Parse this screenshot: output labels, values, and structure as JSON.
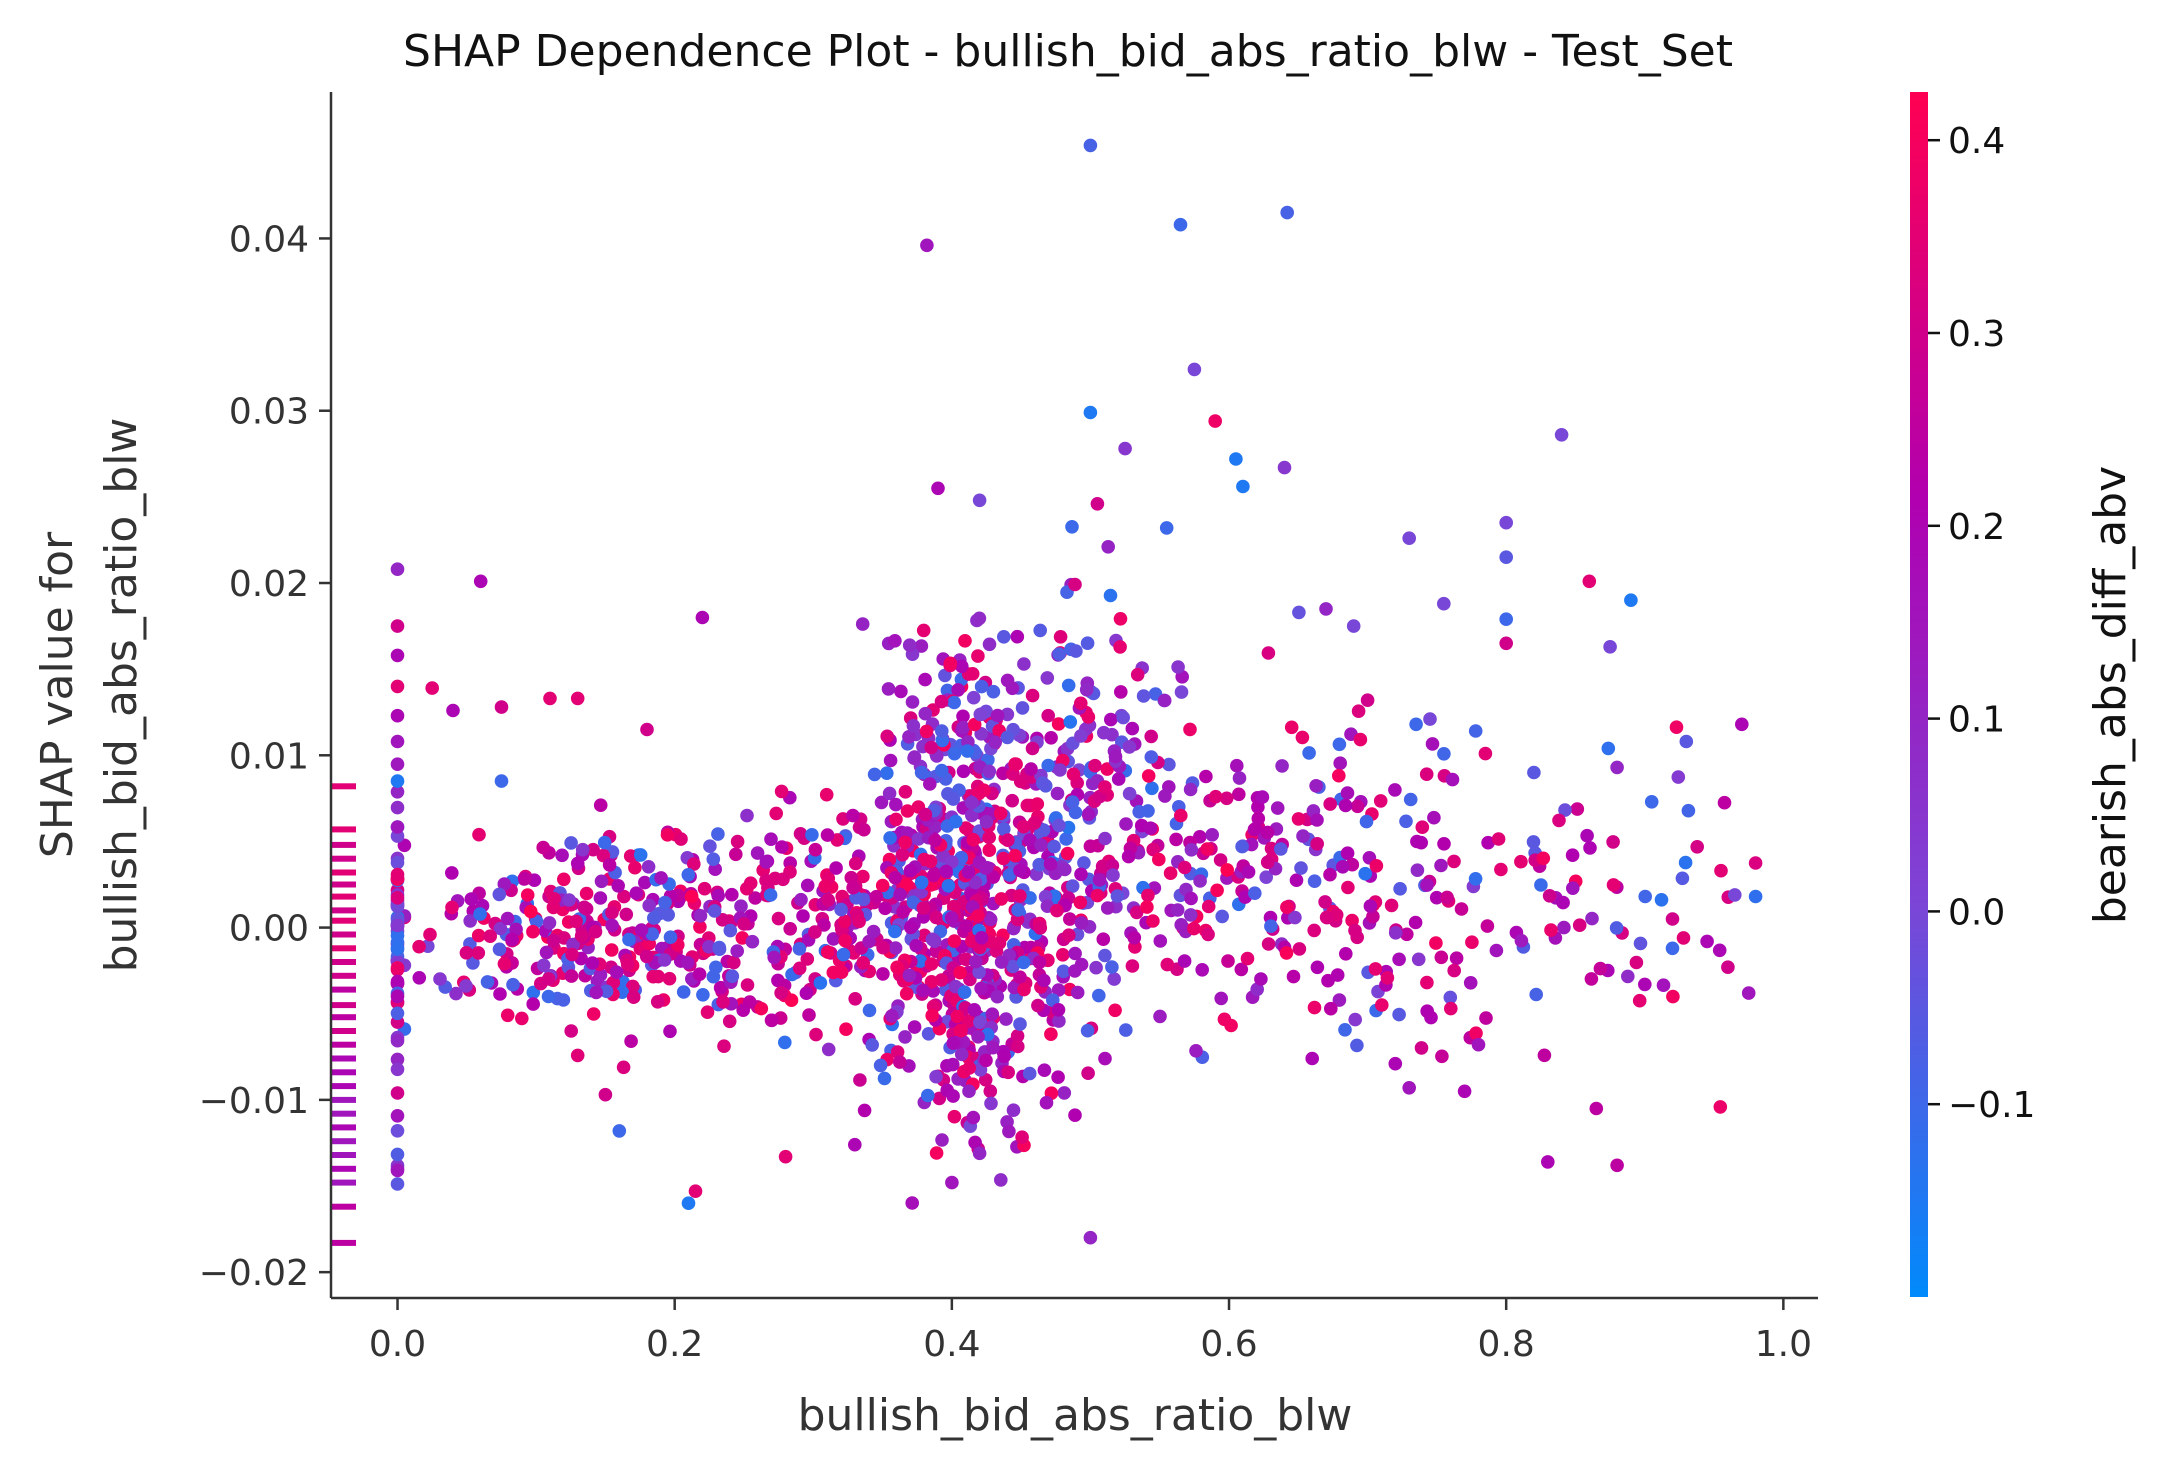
{
  "chart_data": {
    "type": "scatter",
    "title": "SHAP Dependence Plot - bullish_bid_abs_ratio_blw - Test_Set",
    "xlabel": "bullish_bid_abs_ratio_blw",
    "ylabel_line1": "SHAP value for",
    "ylabel_line2": "bullish_bid_abs_ratio_blw",
    "colorbar_label": "bearish_abs_diff_abv",
    "xlim": [
      -0.048,
      1.025
    ],
    "ylim": [
      -0.0215,
      0.0485
    ],
    "xticks": [
      0.0,
      0.2,
      0.4,
      0.6,
      0.8,
      1.0
    ],
    "xtick_labels": [
      "0.0",
      "0.2",
      "0.4",
      "0.6",
      "0.8",
      "1.0"
    ],
    "yticks": [
      -0.02,
      -0.01,
      0.0,
      0.01,
      0.02,
      0.03,
      0.04
    ],
    "ytick_labels": [
      "−0.02",
      "−0.01",
      "0.00",
      "0.01",
      "0.02",
      "0.03",
      "0.04"
    ],
    "color_range": [
      -0.2,
      0.425
    ],
    "cticks": [
      -0.1,
      0.0,
      0.1,
      0.2,
      0.3,
      0.4
    ],
    "ctick_labels": [
      "−0.1",
      "0.0",
      "0.1",
      "0.2",
      "0.3",
      "0.4"
    ],
    "colormap": [
      "#008afb",
      "#7d44d6",
      "#b000b0",
      "#ff0052"
    ],
    "grid": false,
    "points_xyc": [
      [
        0.5,
        0.0454,
        -0.08
      ],
      [
        0.642,
        0.0415,
        -0.08
      ],
      [
        0.565,
        0.0408,
        -0.1
      ],
      [
        0.382,
        0.0396,
        0.15
      ],
      [
        0.575,
        0.0324,
        0.0
      ],
      [
        0.5,
        0.0299,
        -0.15
      ],
      [
        0.84,
        0.0286,
        0.0
      ],
      [
        0.59,
        0.0294,
        0.38
      ],
      [
        0.605,
        0.0272,
        -0.15
      ],
      [
        0.61,
        0.0256,
        -0.15
      ],
      [
        0.64,
        0.0267,
        0.05
      ],
      [
        0.525,
        0.0278,
        0.05
      ],
      [
        0.39,
        0.0255,
        0.2
      ],
      [
        0.42,
        0.0248,
        0.0
      ],
      [
        0.505,
        0.0246,
        0.3
      ],
      [
        0.8,
        0.0235,
        0.0
      ],
      [
        0.73,
        0.0226,
        0.0
      ],
      [
        0.555,
        0.0232,
        -0.1
      ],
      [
        0.8,
        0.0215,
        -0.05
      ],
      [
        0.0,
        0.0208,
        0.1
      ],
      [
        0.06,
        0.0201,
        0.2
      ],
      [
        0.86,
        0.0201,
        0.35
      ],
      [
        0.89,
        0.019,
        -0.15
      ],
      [
        0.22,
        0.018,
        0.2
      ],
      [
        0.8,
        0.0179,
        -0.1
      ],
      [
        0.0,
        0.0175,
        0.3
      ],
      [
        0.8,
        0.0165,
        0.3
      ],
      [
        0.875,
        0.0163,
        0.0
      ],
      [
        0.0,
        0.0158,
        0.2
      ],
      [
        0.0,
        0.014,
        0.35
      ],
      [
        0.025,
        0.0139,
        0.35
      ],
      [
        0.0,
        0.0123,
        0.2
      ],
      [
        0.04,
        0.0126,
        0.2
      ],
      [
        0.075,
        0.0128,
        0.3
      ],
      [
        0.11,
        0.0133,
        0.35
      ],
      [
        0.13,
        0.0133,
        0.35
      ],
      [
        0.0,
        0.0108,
        0.15
      ],
      [
        0.18,
        0.0115,
        0.3
      ],
      [
        0.0,
        0.0085,
        -0.15
      ],
      [
        0.075,
        0.0085,
        -0.1
      ],
      [
        0.0,
        -0.0096,
        0.3
      ],
      [
        0.0,
        -0.0141,
        0.15
      ],
      [
        0.21,
        -0.016,
        -0.15
      ],
      [
        0.215,
        -0.0153,
        0.35
      ],
      [
        0.5,
        -0.018,
        0.1
      ],
      [
        0.88,
        -0.0138,
        0.25
      ],
      [
        0.83,
        -0.0136,
        0.2
      ],
      [
        0.865,
        -0.0105,
        0.25
      ],
      [
        0.97,
        0.0118,
        0.2
      ],
      [
        0.975,
        -0.0038,
        0.15
      ],
      [
        0.955,
        0.0033,
        0.35
      ],
      [
        0.965,
        0.0019,
        0.0
      ],
      [
        0.92,
        -0.0012,
        -0.1
      ],
      [
        0.92,
        0.0005,
        0.3
      ],
      [
        0.945,
        -0.0008,
        0.2
      ],
      [
        0.96,
        -0.0023,
        0.3
      ],
      [
        0.9,
        -0.0033,
        0.2
      ],
      [
        0.93,
        0.0108,
        -0.05
      ],
      [
        0.905,
        0.0073,
        -0.1
      ],
      [
        0.88,
        0.0093,
        0.1
      ],
      [
        0.82,
        0.009,
        -0.05
      ],
      [
        0.78,
        -0.0068,
        0.15
      ],
      [
        0.77,
        -0.0095,
        0.2
      ],
      [
        0.73,
        -0.0093,
        0.15
      ],
      [
        0.72,
        -0.0079,
        0.2
      ],
      [
        0.76,
        -0.0047,
        0.35
      ],
      [
        0.745,
        0.0121,
        0.0
      ],
      [
        0.735,
        0.0118,
        -0.1
      ],
      [
        0.785,
        0.0101,
        0.35
      ],
      [
        0.755,
        0.0188,
        0.0
      ],
      [
        0.69,
        0.0175,
        0.0
      ],
      [
        0.67,
        0.0185,
        0.1
      ],
      [
        0.66,
        -0.0076,
        0.2
      ],
      [
        0.7,
        0.0132,
        0.3
      ],
      [
        0.28,
        -0.0133,
        0.35
      ],
      [
        0.33,
        -0.0126,
        0.2
      ],
      [
        0.42,
        -0.0131,
        0.1
      ],
      [
        0.4,
        -0.0148,
        0.15
      ],
      [
        0.16,
        -0.0118,
        -0.1
      ],
      [
        0.15,
        -0.0097,
        0.3
      ]
    ],
    "clusters": [
      {
        "n": 320,
        "cx": 0.42,
        "sx": 0.035,
        "cy": 0.0003,
        "sy": 0.0045,
        "ctr": 0.2
      },
      {
        "n": 180,
        "cx": 0.49,
        "sx": 0.04,
        "cy": 0.0055,
        "sy": 0.0055,
        "ctr": 0.1
      },
      {
        "n": 160,
        "cx": 0.4,
        "sx": 0.025,
        "cy": 0.0095,
        "sy": 0.0045,
        "ctr": 0.1
      },
      {
        "n": 220,
        "cx": 0.33,
        "sx": 0.05,
        "cy": 0.0005,
        "sy": 0.0035,
        "ctr": 0.25
      },
      {
        "n": 200,
        "cx": 0.2,
        "sx": 0.06,
        "cy": 0.0,
        "sy": 0.0028,
        "ctr": 0.22
      },
      {
        "n": 140,
        "cx": 0.1,
        "sx": 0.05,
        "cy": -0.0008,
        "sy": 0.0028,
        "ctr": 0.2
      },
      {
        "n": 160,
        "cx": 0.6,
        "sx": 0.06,
        "cy": 0.0025,
        "sy": 0.0045,
        "ctr": 0.18
      },
      {
        "n": 110,
        "cx": 0.72,
        "sx": 0.06,
        "cy": 0.002,
        "sy": 0.0045,
        "ctr": 0.22
      },
      {
        "n": 60,
        "cx": 0.86,
        "sx": 0.06,
        "cy": 0.001,
        "sy": 0.0045,
        "ctr": 0.22
      },
      {
        "n": 90,
        "cx": 0.41,
        "sx": 0.03,
        "cy": -0.007,
        "sy": 0.003,
        "ctr": 0.15
      },
      {
        "n": 50,
        "cx": 0.48,
        "sx": 0.04,
        "cy": 0.013,
        "sy": 0.004,
        "ctr": 0.05
      },
      {
        "n": 60,
        "cx": 0.0,
        "sx": 0.0,
        "cy": -0.0012,
        "sy": 0.0045,
        "ctr": 0.1
      }
    ],
    "rug": [
      [
        0.0082,
        0.35
      ],
      [
        0.0057,
        0.35
      ],
      [
        0.0048,
        0.3
      ],
      [
        0.004,
        0.3
      ],
      [
        0.0032,
        0.35
      ],
      [
        0.0025,
        0.3
      ],
      [
        0.0018,
        0.35
      ],
      [
        0.001,
        0.3
      ],
      [
        0.0004,
        0.35
      ],
      [
        -0.0004,
        0.3
      ],
      [
        -0.0012,
        0.35
      ],
      [
        -0.002,
        0.3
      ],
      [
        -0.0028,
        0.3
      ],
      [
        -0.0036,
        0.25
      ],
      [
        -0.0045,
        0.3
      ],
      [
        -0.0052,
        0.25
      ],
      [
        -0.006,
        0.3
      ],
      [
        -0.0068,
        0.25
      ],
      [
        -0.0076,
        0.2
      ],
      [
        -0.0084,
        0.2
      ],
      [
        -0.0092,
        0.2
      ],
      [
        -0.01,
        0.15
      ],
      [
        -0.0108,
        0.15
      ],
      [
        -0.0116,
        0.2
      ],
      [
        -0.0124,
        0.15
      ],
      [
        -0.0132,
        0.15
      ],
      [
        -0.014,
        0.2
      ],
      [
        -0.0148,
        0.15
      ],
      [
        -0.0162,
        0.25
      ],
      [
        -0.0183,
        0.25
      ]
    ]
  }
}
